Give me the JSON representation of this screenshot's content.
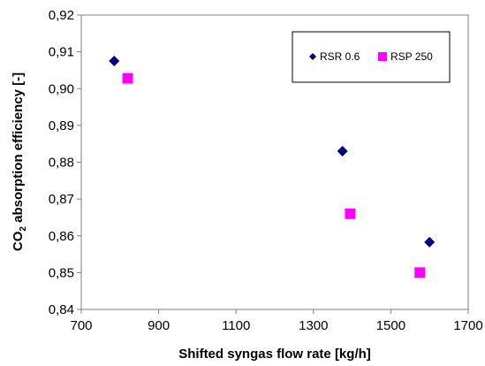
{
  "chart_data": {
    "type": "scatter",
    "xlabel": "Shifted syngas flow rate [kg/h]",
    "ylabel_prefix": "CO",
    "ylabel_sub": "2",
    "ylabel_suffix": " absorption efficiency [-]",
    "xlim": [
      700,
      1700
    ],
    "ylim": [
      0.84,
      0.92
    ],
    "x_ticks": [
      "700",
      "900",
      "1100",
      "1300",
      "1500",
      "1700"
    ],
    "y_ticks": [
      "0,84",
      "0,85",
      "0,86",
      "0,87",
      "0,88",
      "0,89",
      "0,90",
      "0,91",
      "0,92"
    ],
    "grid": false,
    "legend_position": "top-right",
    "series": [
      {
        "name": "RSR 0.6",
        "marker": "diamond",
        "color": "#000080",
        "points": [
          {
            "x": 785,
            "y": 0.9075
          },
          {
            "x": 1375,
            "y": 0.883
          },
          {
            "x": 1600,
            "y": 0.8583
          }
        ]
      },
      {
        "name": "RSP 250",
        "marker": "square",
        "color": "#FF00FF",
        "points": [
          {
            "x": 820,
            "y": 0.9028
          },
          {
            "x": 1395,
            "y": 0.866
          },
          {
            "x": 1575,
            "y": 0.85
          }
        ]
      }
    ]
  }
}
